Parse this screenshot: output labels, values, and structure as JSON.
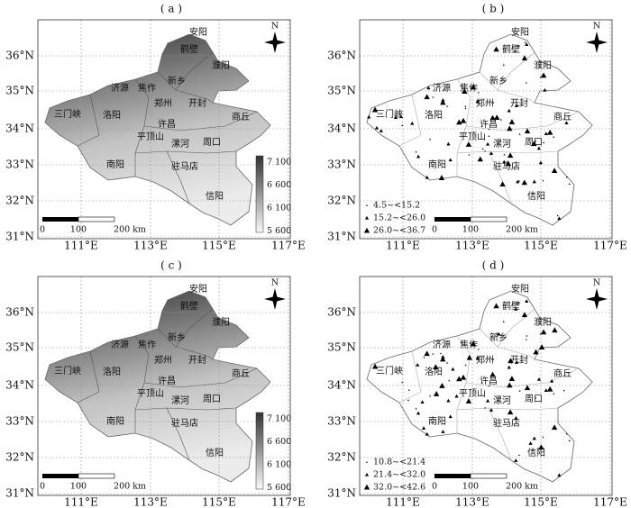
{
  "axes": {
    "lat_labels": [
      "36°N",
      "35°N",
      "34°N",
      "33°N",
      "32°N",
      "31°N"
    ],
    "lon_labels": [
      "111°E",
      "113°E",
      "115°E",
      "117°E"
    ]
  },
  "cities": [
    "安阳",
    "鹤壁",
    "濮阳",
    "济源",
    "焦作",
    "新乡",
    "三门峡",
    "洛阳",
    "郑州",
    "开封",
    "商丘",
    "许昌",
    "平顶山",
    "漯河",
    "周口",
    "南阳",
    "驻马店",
    "信阳"
  ],
  "north": "N",
  "scale_labels": [
    "0",
    "100",
    "200 km"
  ],
  "panels": [
    {
      "label": "( a )",
      "colorbar": [
        "7 100",
        "6 600",
        "6 100",
        "5 600"
      ]
    },
    {
      "label": "( b )",
      "legend": [
        "4.5~<15.2",
        "15.2~<26.0",
        "26.0~<36.7"
      ]
    },
    {
      "label": "( c )",
      "colorbar": [
        "7 100",
        "6 600",
        "6 100",
        "5 600"
      ]
    },
    {
      "label": "( d )",
      "legend": [
        "10.8~<21.4",
        "21.4~<32.0",
        "32.0~<42.6"
      ]
    }
  ]
}
